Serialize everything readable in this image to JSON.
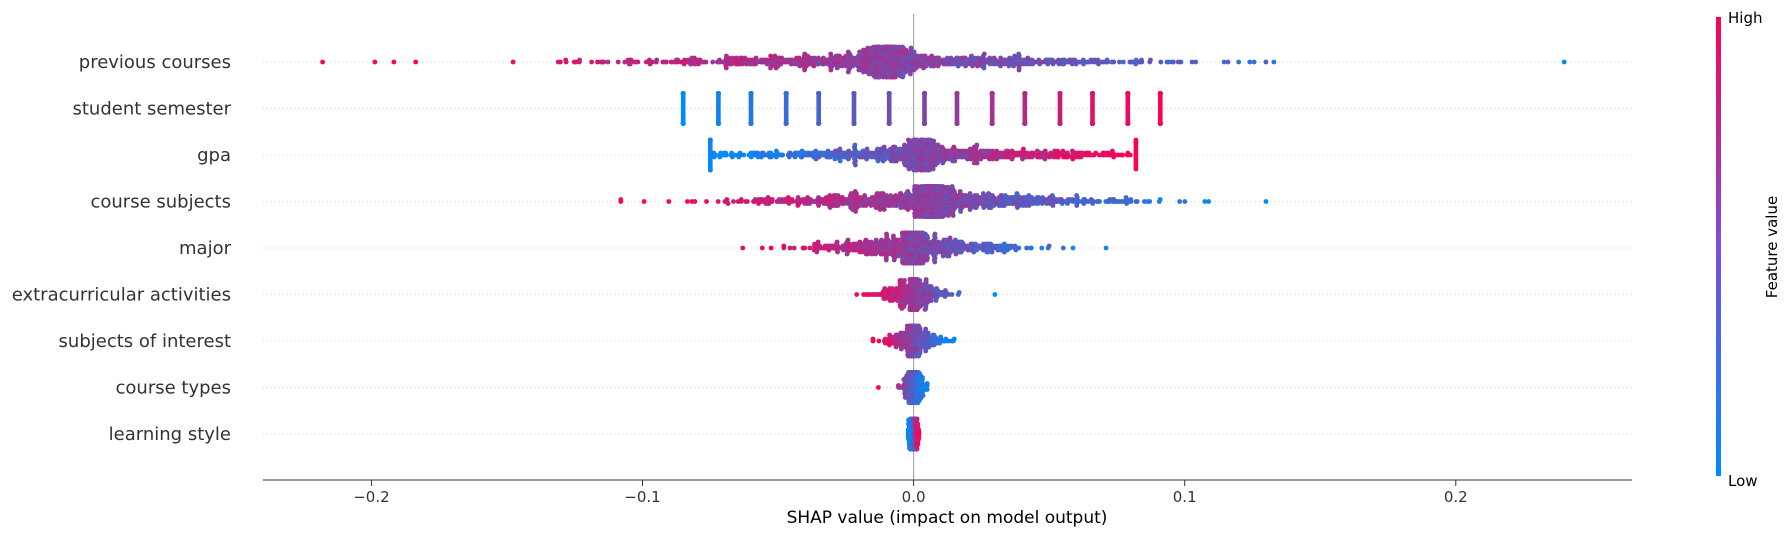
{
  "chart_data": {
    "type": "scatter",
    "subtype": "shap-beeswarm",
    "title": "",
    "xlabel": "SHAP value (impact on model output)",
    "ylabel": "",
    "xlim": [
      -0.24,
      0.265
    ],
    "x_ticks": [
      -0.2,
      -0.1,
      0.0,
      0.1,
      0.2
    ],
    "x_tick_labels": [
      "−0.2",
      "−0.1",
      "0.0",
      "0.1",
      "0.2"
    ],
    "grid": "horizontal dotted row lines",
    "colors": {
      "low": "#008bfb",
      "high": "#ff0052"
    },
    "colorbar": {
      "label": "Feature value",
      "high": "High",
      "low": "Low",
      "placement": "right"
    },
    "features": [
      {
        "name": "previous courses",
        "min": -0.218,
        "max": 0.24,
        "median": -0.01,
        "spread": 0.045,
        "direction": -1,
        "style": "continuous"
      },
      {
        "name": "student semester",
        "min": -0.085,
        "max": 0.091,
        "median": 0.0,
        "spread": 0.0,
        "direction": 1,
        "style": "discrete",
        "levels": [
          -0.085,
          -0.072,
          -0.06,
          -0.047,
          -0.035,
          -0.022,
          -0.009,
          0.004,
          0.016,
          0.029,
          0.041,
          0.054,
          0.066,
          0.079,
          0.091
        ]
      },
      {
        "name": "gpa",
        "min": -0.075,
        "max": 0.082,
        "median": 0.003,
        "spread": 0.04,
        "direction": 1,
        "style": "continuous"
      },
      {
        "name": "course subjects",
        "min": -0.108,
        "max": 0.13,
        "median": 0.007,
        "spread": 0.035,
        "direction": -1,
        "style": "continuous"
      },
      {
        "name": "major",
        "min": -0.063,
        "max": 0.071,
        "median": 0.0,
        "spread": 0.018,
        "direction": -1,
        "style": "continuous"
      },
      {
        "name": "extracurricular activities",
        "min": -0.021,
        "max": 0.03,
        "median": 0.0,
        "spread": 0.006,
        "direction": -1,
        "style": "continuous"
      },
      {
        "name": "subjects of interest",
        "min": -0.015,
        "max": 0.015,
        "median": 0.0,
        "spread": 0.005,
        "direction": -1,
        "style": "continuous"
      },
      {
        "name": "course types",
        "min": -0.013,
        "max": 0.005,
        "median": 0.0,
        "spread": 0.002,
        "direction": -1,
        "style": "continuous"
      },
      {
        "name": "learning style",
        "min": -0.002,
        "max": 0.002,
        "median": 0.0,
        "spread": 0.001,
        "direction": 1,
        "style": "continuous"
      }
    ]
  }
}
